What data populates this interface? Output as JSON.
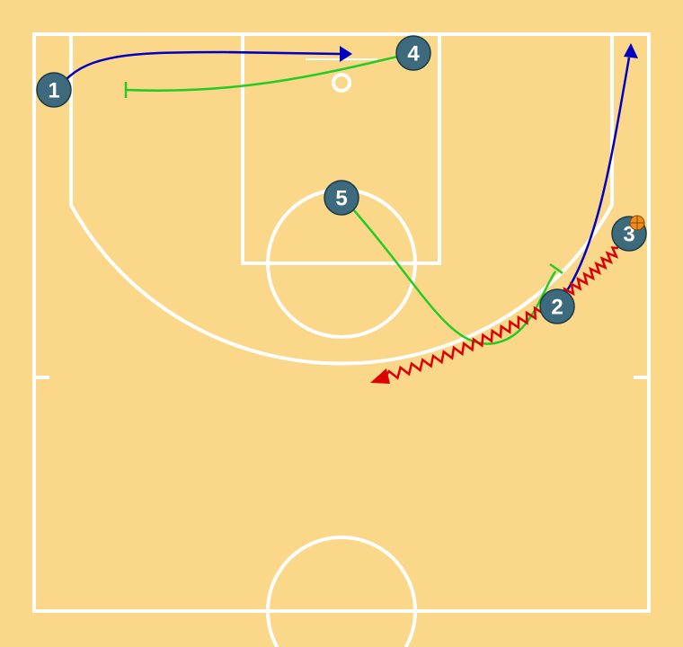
{
  "diagram": {
    "court_color": "#fbd78a",
    "line_color": "#ffffff",
    "player_color": "#3d6b7d",
    "colors": {
      "cut": "#0000c0",
      "screen": "#22cc22",
      "dribble": "#dd0000"
    },
    "players": [
      {
        "label": "1",
        "has_ball": false
      },
      {
        "label": "2",
        "has_ball": false
      },
      {
        "label": "3",
        "has_ball": true
      },
      {
        "label": "4",
        "has_ball": false
      },
      {
        "label": "5",
        "has_ball": false
      }
    ],
    "actions": [
      {
        "player": "1",
        "type": "cut",
        "ends_with": "arrow"
      },
      {
        "player": "2",
        "type": "cut",
        "ends_with": "arrow"
      },
      {
        "player": "3",
        "type": "dribble",
        "ends_with": "arrow"
      },
      {
        "player": "4",
        "type": "screen",
        "ends_with": "bar"
      },
      {
        "player": "5",
        "type": "screen",
        "ends_with": "bar"
      }
    ],
    "ball_icon": "basketball-icon"
  }
}
